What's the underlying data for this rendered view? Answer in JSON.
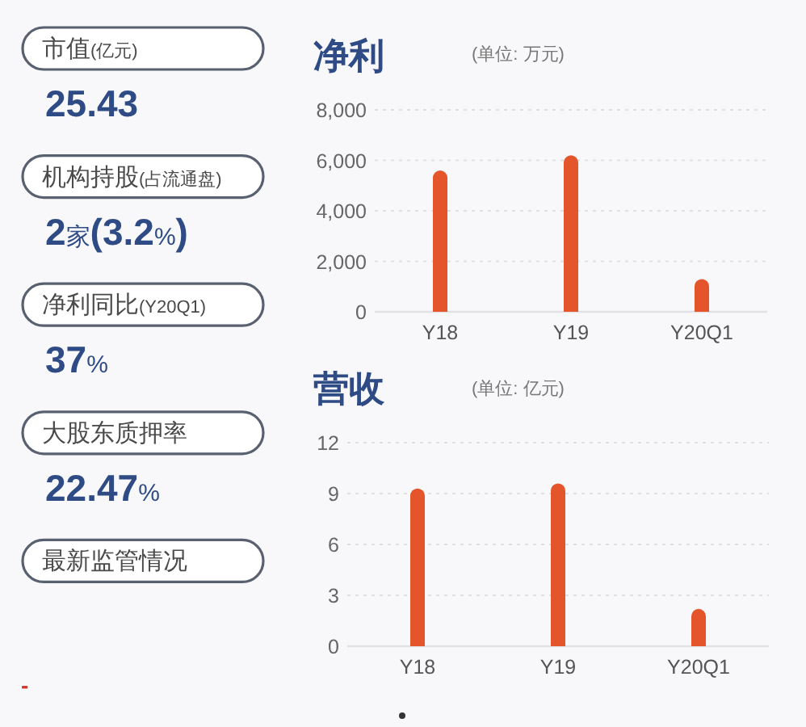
{
  "chart_data": [
    {
      "type": "other",
      "categories": [
        "市值(亿元)",
        "机构持股(占流通盘)",
        "净利同比(Y20Q1)",
        "大股东质押率",
        "最新监管情况"
      ],
      "value_labels": [
        "25.43",
        "2家(3.2%)",
        "37%",
        "22.47%",
        null
      ],
      "annotations": [
        "-"
      ]
    },
    {
      "type": "bar",
      "title": "净利",
      "subtitle": "(单位: 万元)",
      "categories": [
        "Y18",
        "Y19",
        "Y20Q1"
      ],
      "values": [
        5600,
        6200,
        1300
      ],
      "color": "#e4552b",
      "ylim": [
        0,
        8000
      ],
      "yticks": [
        0,
        {
          "value": 2000,
          "label": "2,000"
        },
        {
          "value": 4000,
          "label": "4,000"
        },
        {
          "value": 6000,
          "label": "6,000"
        },
        {
          "value": 8000,
          "label": "8,000"
        }
      ],
      "grid": "y"
    },
    {
      "type": "bar",
      "title": "营收",
      "subtitle": "(单位: 亿元)",
      "categories": [
        "Y18",
        "Y19",
        "Y20Q1"
      ],
      "values": [
        9.3,
        9.6,
        2.2
      ],
      "color": "#e4552b",
      "ylim": [
        0,
        12
      ],
      "yticks": [
        0,
        3,
        6,
        9,
        12
      ],
      "grid": "y"
    }
  ]
}
